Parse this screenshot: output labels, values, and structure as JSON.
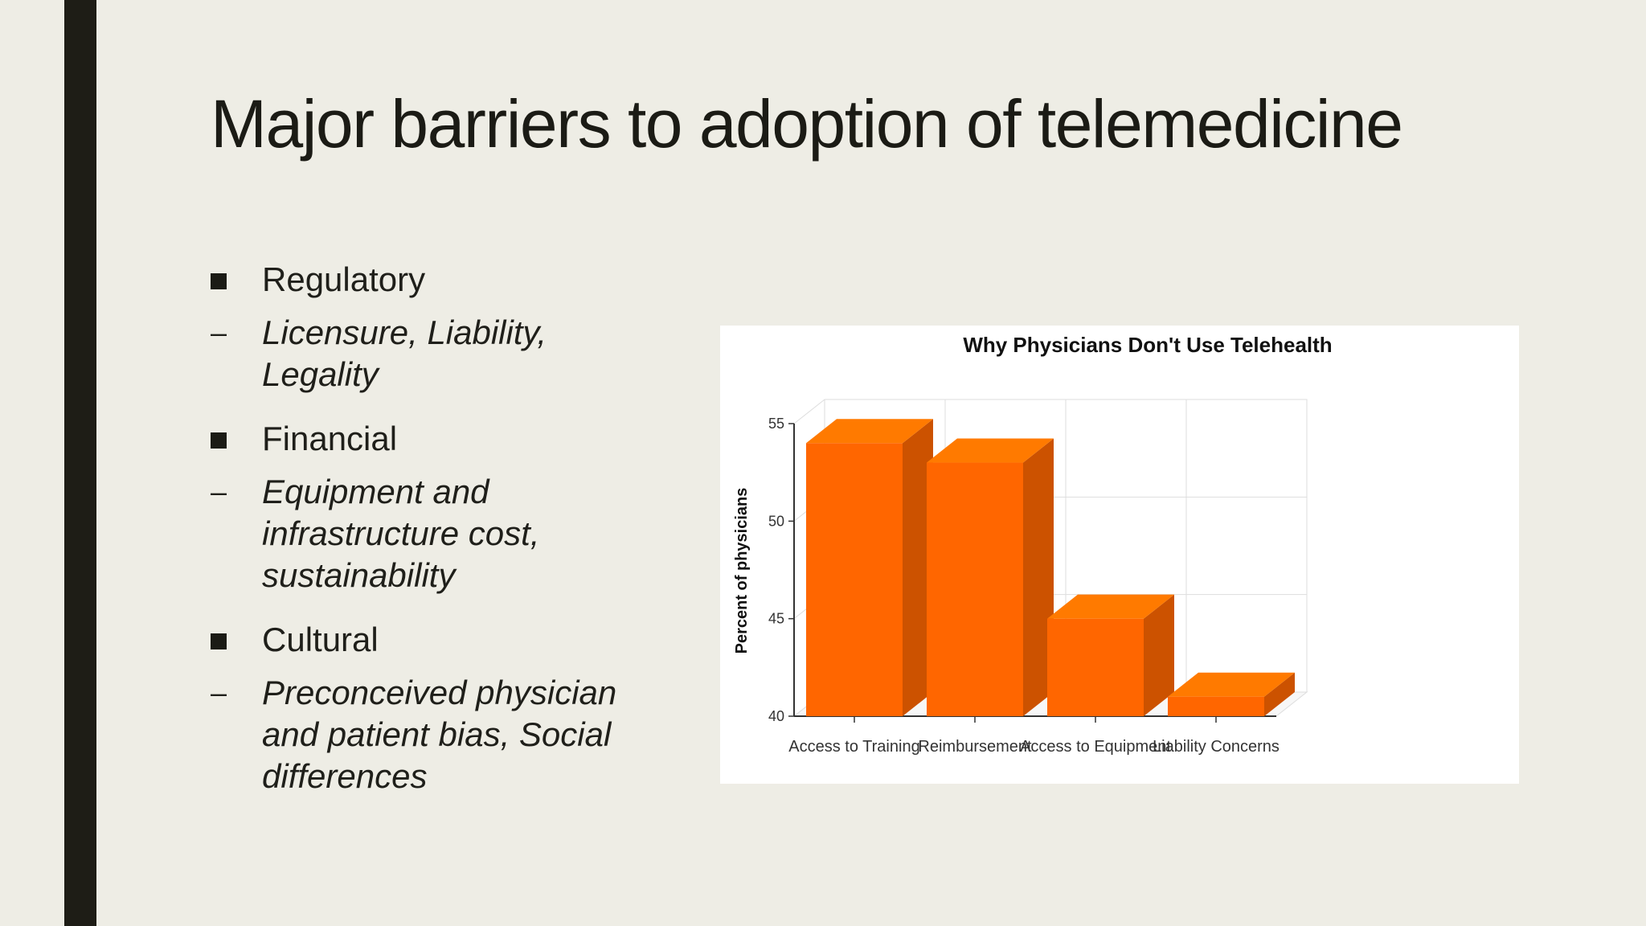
{
  "slide": {
    "title": "Major barriers to adoption of telemedicine",
    "bullets": [
      {
        "label": "Regulatory",
        "sub": "Licensure, Liability, Legality"
      },
      {
        "label": "Financial",
        "sub": "Equipment and infrastructure cost, sustainability"
      },
      {
        "label": "Cultural",
        "sub": "Preconceived physician and patient bias, Social differences"
      }
    ],
    "sub_marker": "–"
  },
  "colors": {
    "background": "#EEEDE5",
    "side_bar": "#1E1D16",
    "bar_front": "#FF6600",
    "bar_top": "#FF7A00",
    "bar_side": "#CC5200"
  },
  "chart_data": {
    "type": "bar",
    "title": "Why Physicians Don't Use Telehealth",
    "xlabel": "",
    "ylabel": "Percent of physicians",
    "categories": [
      "Access to Training",
      "Reimbursement",
      "Access to Equipment",
      "Liability Concerns"
    ],
    "values": [
      54,
      53,
      45,
      41
    ],
    "ylim": [
      40,
      55
    ],
    "yticks": [
      40,
      45,
      50,
      55
    ],
    "grid": true,
    "style": "3d"
  }
}
